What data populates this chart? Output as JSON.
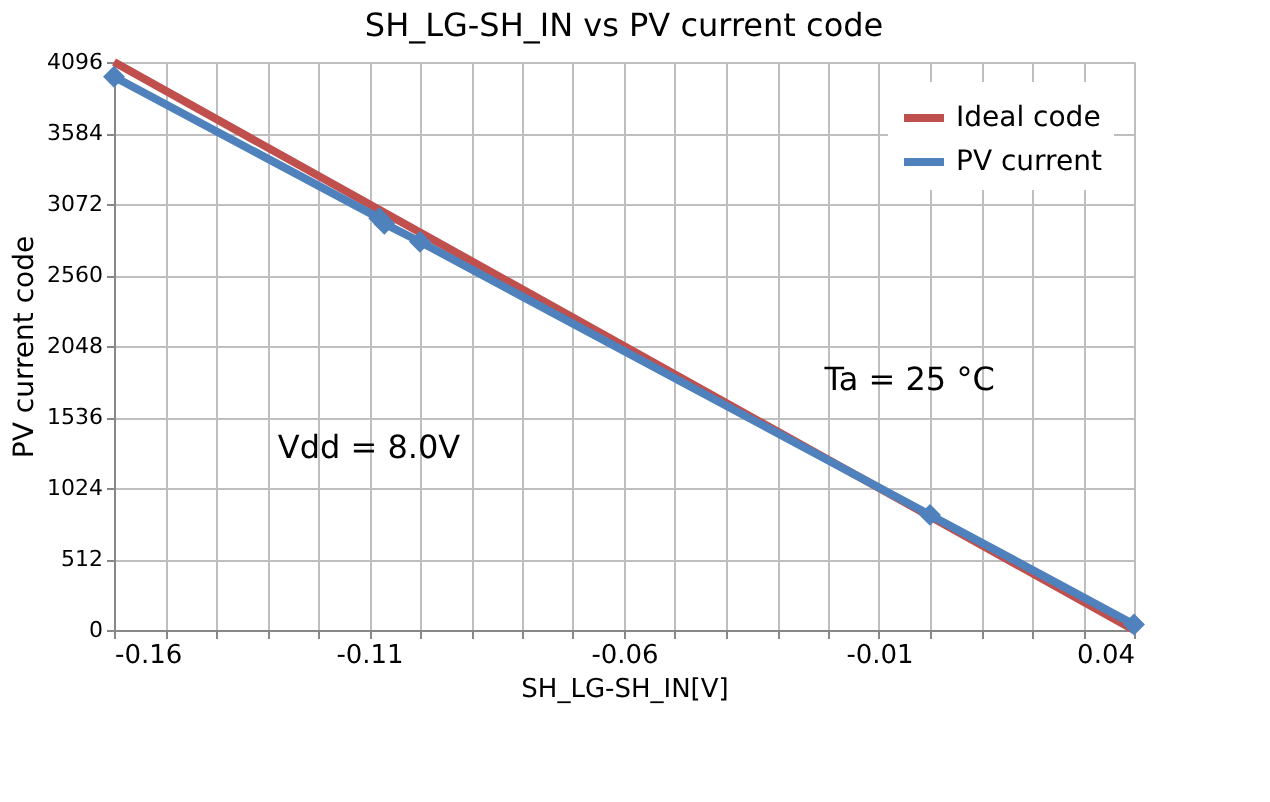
{
  "chart_data": {
    "type": "line",
    "title": "SH_LG-SH_IN vs PV current code",
    "xlabel": "SH_LG-SH_IN[V]",
    "ylabel": "PV current code",
    "xlim": [
      -0.16,
      0.04
    ],
    "xticks": [
      -0.16,
      {
        "value": -0.15,
        "label": null
      },
      {
        "value": -0.14,
        "label": null
      },
      {
        "value": -0.13,
        "label": null
      },
      {
        "value": -0.12,
        "label": null
      },
      -0.11,
      {
        "value": -0.1,
        "label": null
      },
      {
        "value": -0.09,
        "label": null
      },
      {
        "value": -0.08,
        "label": null
      },
      {
        "value": -0.07,
        "label": null
      },
      -0.06,
      {
        "value": -0.05,
        "label": null
      },
      {
        "value": -0.04,
        "label": null
      },
      {
        "value": -0.03,
        "label": null
      },
      {
        "value": -0.02,
        "label": null
      },
      -0.01,
      {
        "value": 0.0,
        "label": null
      },
      {
        "value": 0.01,
        "label": null
      },
      {
        "value": 0.02,
        "label": null
      },
      {
        "value": 0.03,
        "label": null
      },
      0.04
    ],
    "ylim": [
      0,
      4096
    ],
    "yticks": [
      0,
      512,
      1024,
      1536,
      2048,
      2560,
      3072,
      3584,
      4096
    ],
    "grid": true,
    "legend": "top right",
    "series": [
      {
        "name": "Ideal code",
        "color": "#c0504d",
        "x": [
          -0.16,
          0.04
        ],
        "values": [
          4096,
          0
        ],
        "marker": "none"
      },
      {
        "name": "PV current",
        "color": "#4f81bd",
        "x": [
          -0.16,
          -0.108,
          -0.107,
          -0.1,
          0.0,
          0.04
        ],
        "values": [
          3990,
          2970,
          2930,
          2800,
          830,
          40
        ],
        "marker": "diamond"
      }
    ],
    "annotations": [
      {
        "text": "Ta = 25 °C"
      },
      {
        "text": "Vdd = 8.0V"
      }
    ]
  }
}
